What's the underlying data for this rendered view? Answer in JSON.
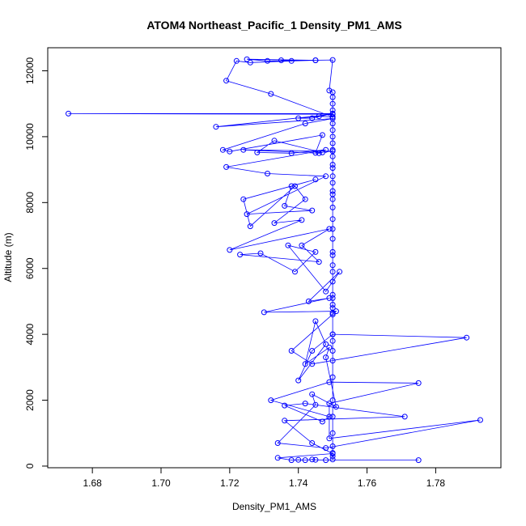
{
  "chart_data": {
    "type": "line",
    "title": "ATOM4 Northeast_Pacific_1 Density_PM1_AMS",
    "xlabel": "Density_PM1_AMS",
    "ylabel": "Altitude (m)",
    "xlim": [
      1.667,
      1.799
    ],
    "ylim": [
      -50,
      12700
    ],
    "x_ticks": [
      1.68,
      1.7,
      1.72,
      1.74,
      1.76,
      1.78
    ],
    "x_tick_labels": [
      "1.68",
      "1.70",
      "1.72",
      "1.74",
      "1.76",
      "1.78"
    ],
    "y_ticks": [
      0,
      2000,
      4000,
      6000,
      8000,
      10000,
      12000
    ],
    "y_tick_labels": [
      "0",
      "2000",
      "4000",
      "6000",
      "8000",
      "10000",
      "12000"
    ],
    "grid": false,
    "series_color": "#0000ff",
    "series": [
      {
        "style": "line+points",
        "points": [
          [
            1.775,
            180
          ],
          [
            1.748,
            180
          ],
          [
            1.745,
            190
          ],
          [
            1.744,
            200
          ],
          [
            1.742,
            180
          ],
          [
            1.74,
            190
          ],
          [
            1.738,
            180
          ],
          [
            1.734,
            250
          ],
          [
            1.75,
            380
          ],
          [
            1.744,
            700
          ],
          [
            1.736,
            1380
          ],
          [
            1.771,
            1500
          ],
          [
            1.742,
            1900
          ],
          [
            1.736,
            1840
          ],
          [
            1.747,
            1350
          ],
          [
            1.749,
            1500
          ],
          [
            1.732,
            2000
          ],
          [
            1.749,
            2550
          ],
          [
            1.775,
            2520
          ],
          [
            1.749,
            1900
          ],
          [
            1.749,
            840
          ],
          [
            1.793,
            1400
          ],
          [
            1.748,
            550
          ],
          [
            1.734,
            700
          ],
          [
            1.745,
            1860
          ],
          [
            1.744,
            2180
          ],
          [
            1.751,
            1800
          ],
          [
            1.748,
            3300
          ],
          [
            1.749,
            3600
          ],
          [
            1.742,
            3100
          ],
          [
            1.745,
            4400
          ],
          [
            1.748,
            3700
          ],
          [
            1.74,
            2600
          ],
          [
            1.744,
            3500
          ],
          [
            1.75,
            4000
          ],
          [
            1.789,
            3900
          ],
          [
            1.744,
            3100
          ],
          [
            1.738,
            3500
          ],
          [
            1.751,
            4700
          ],
          [
            1.73,
            4670
          ],
          [
            1.749,
            5100
          ],
          [
            1.743,
            5000
          ],
          [
            1.752,
            5900
          ],
          [
            1.748,
            5300
          ],
          [
            1.737,
            6700
          ],
          [
            1.745,
            6500
          ],
          [
            1.739,
            5900
          ],
          [
            1.729,
            6460
          ],
          [
            1.723,
            6420
          ],
          [
            1.746,
            6200
          ],
          [
            1.741,
            6700
          ],
          [
            1.749,
            7200
          ],
          [
            1.72,
            6560
          ],
          [
            1.741,
            7470
          ],
          [
            1.733,
            7380
          ],
          [
            1.742,
            8100
          ],
          [
            1.739,
            8500
          ],
          [
            1.726,
            7280
          ],
          [
            1.724,
            8100
          ],
          [
            1.745,
            8700
          ],
          [
            1.738,
            8500
          ],
          [
            1.736,
            7900
          ],
          [
            1.744,
            7760
          ],
          [
            1.725,
            7650
          ],
          [
            1.748,
            8800
          ],
          [
            1.731,
            8880
          ],
          [
            1.719,
            9080
          ],
          [
            1.748,
            9600
          ],
          [
            1.738,
            9500
          ],
          [
            1.728,
            9520
          ],
          [
            1.733,
            9880
          ],
          [
            1.747,
            9520
          ],
          [
            1.746,
            9500
          ],
          [
            1.724,
            9600
          ],
          [
            1.75,
            9560
          ],
          [
            1.745,
            9510
          ],
          [
            1.747,
            10050
          ],
          [
            1.72,
            9550
          ],
          [
            1.718,
            9600
          ],
          [
            1.742,
            10400
          ],
          [
            1.75,
            10550
          ],
          [
            1.716,
            10300
          ],
          [
            1.75,
            10680
          ],
          [
            1.673,
            10700
          ],
          [
            1.75,
            10700
          ],
          [
            1.744,
            10560
          ],
          [
            1.74,
            10560
          ],
          [
            1.746,
            10620
          ],
          [
            1.75,
            10600
          ],
          [
            1.732,
            11300
          ],
          [
            1.719,
            11700
          ],
          [
            1.722,
            12300
          ],
          [
            1.726,
            12250
          ],
          [
            1.738,
            12300
          ],
          [
            1.745,
            12320
          ],
          [
            1.735,
            12320
          ],
          [
            1.745,
            12320
          ],
          [
            1.725,
            12350
          ],
          [
            1.731,
            12300
          ],
          [
            1.75,
            12330
          ],
          [
            1.749,
            11400
          ],
          [
            1.75,
            11350
          ],
          [
            1.75,
            11200
          ],
          [
            1.75,
            11000
          ],
          [
            1.75,
            10800
          ],
          [
            1.75,
            10600
          ],
          [
            1.75,
            10400
          ],
          [
            1.75,
            10200
          ],
          [
            1.75,
            10000
          ],
          [
            1.75,
            9800
          ],
          [
            1.75,
            9600
          ],
          [
            1.75,
            9400
          ],
          [
            1.75,
            9150
          ],
          [
            1.75,
            9050
          ],
          [
            1.75,
            8800
          ],
          [
            1.75,
            8600
          ],
          [
            1.75,
            8350
          ],
          [
            1.75,
            8250
          ],
          [
            1.75,
            8100
          ],
          [
            1.75,
            7850
          ],
          [
            1.75,
            7500
          ],
          [
            1.75,
            7200
          ],
          [
            1.75,
            6900
          ],
          [
            1.75,
            6500
          ],
          [
            1.75,
            6400
          ],
          [
            1.75,
            6100
          ],
          [
            1.75,
            5900
          ],
          [
            1.75,
            5600
          ],
          [
            1.75,
            5200
          ],
          [
            1.75,
            5100
          ],
          [
            1.75,
            4900
          ],
          [
            1.75,
            4800
          ],
          [
            1.75,
            4650
          ],
          [
            1.75,
            4600
          ],
          [
            1.75,
            4000
          ],
          [
            1.75,
            3800
          ],
          [
            1.75,
            3500
          ],
          [
            1.75,
            3200
          ],
          [
            1.75,
            2700
          ],
          [
            1.75,
            2000
          ],
          [
            1.75,
            1500
          ],
          [
            1.75,
            1000
          ],
          [
            1.75,
            600
          ],
          [
            1.75,
            400
          ],
          [
            1.75,
            300
          ],
          [
            1.75,
            200
          ]
        ]
      }
    ]
  }
}
